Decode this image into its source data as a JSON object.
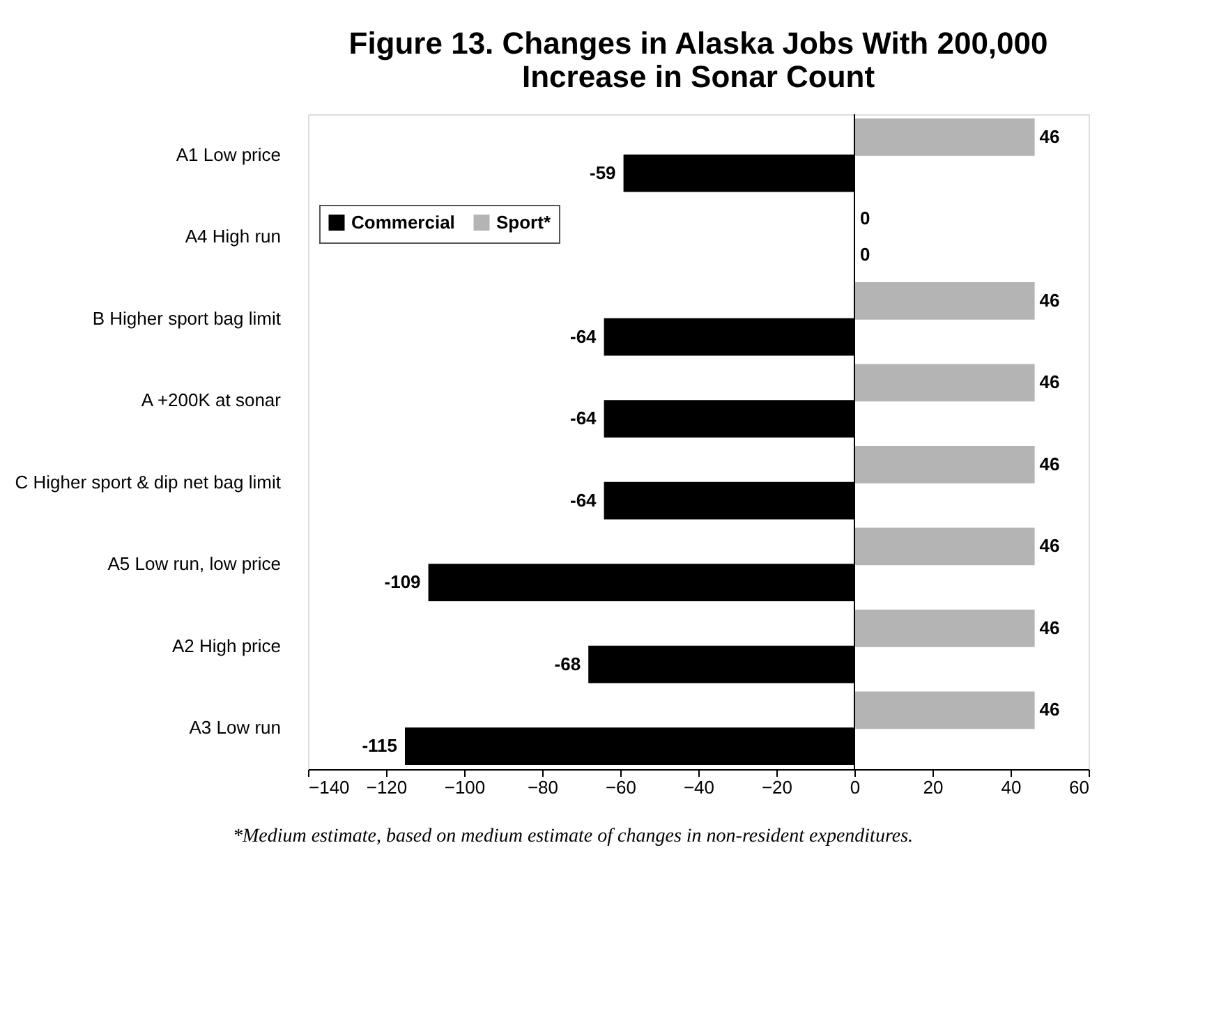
{
  "chart_data": {
    "type": "bar",
    "orientation": "horizontal",
    "title": "Figure 13. Changes in Alaska Jobs With 200,000 Increase in Sonar Count",
    "categories": [
      "A1 Low price",
      "A4 High run",
      "B Higher sport bag limit",
      "A +200K at sonar",
      "C Higher sport & dip net bag limit",
      "A5 Low run, low price",
      "A2 High price",
      "A3 Low run"
    ],
    "series": [
      {
        "name": "Commercial",
        "color": "#000000",
        "values": [
          -59,
          0,
          -64,
          -64,
          -64,
          -109,
          -68,
          -115
        ]
      },
      {
        "name": "Sport*",
        "color": "#b4b4b4",
        "values": [
          46,
          0,
          46,
          46,
          46,
          46,
          46,
          46
        ]
      }
    ],
    "xlim": [
      -140,
      60
    ],
    "xticks": [
      -140,
      -120,
      -100,
      -80,
      -60,
      -40,
      -20,
      0,
      20,
      40,
      60
    ],
    "ref_lines": [
      {
        "axis": "x",
        "value": 0,
        "color": "#000000"
      }
    ],
    "data_labels": true,
    "grid": false,
    "legend": "top left",
    "annotations": [
      "*Medium estimate, based on medium estimate of changes in non-resident expenditures."
    ]
  }
}
